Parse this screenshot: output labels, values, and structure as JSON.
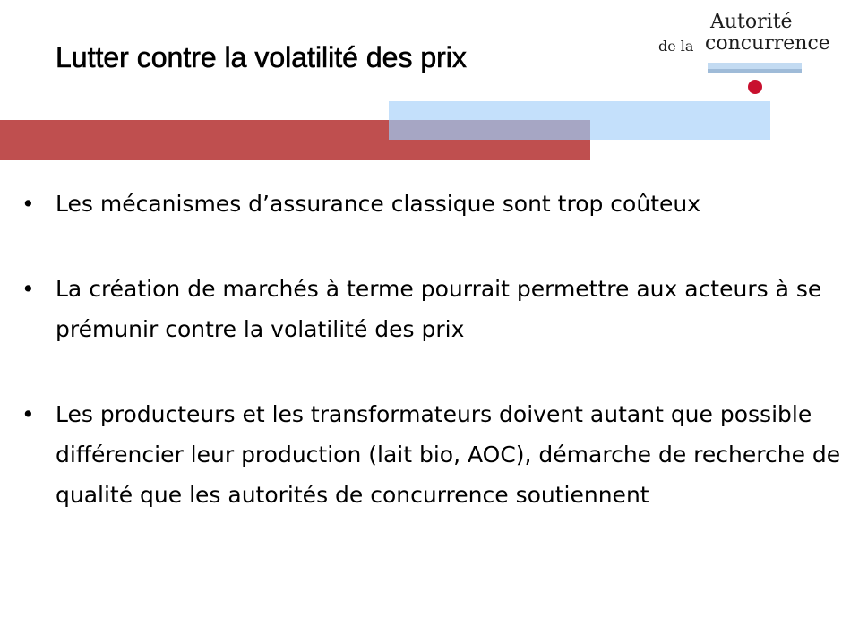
{
  "slide": {
    "title": "Lutter contre la volatilité des prix",
    "bullet_symbol": "•",
    "bullets": [
      "Les mécanismes d’assurance classique sont trop coûteux",
      "La création de marchés à terme pourrait permettre aux acteurs à se prémunir contre la volatilité des prix",
      "Les producteurs et les transformateurs doivent autant que possible différencier leur production (lait bio, AOC), démarche de recherche de qualité que les autorités de concurrence soutiennent"
    ]
  },
  "logo": {
    "line1": "Autorité",
    "prefix": "de la",
    "line2": "concurrence",
    "dot_color": "#c8102e"
  },
  "colors": {
    "red_band": "#bf4f4f",
    "blue_band": "#c4e0fb",
    "overlap": "#a6a6c4"
  }
}
